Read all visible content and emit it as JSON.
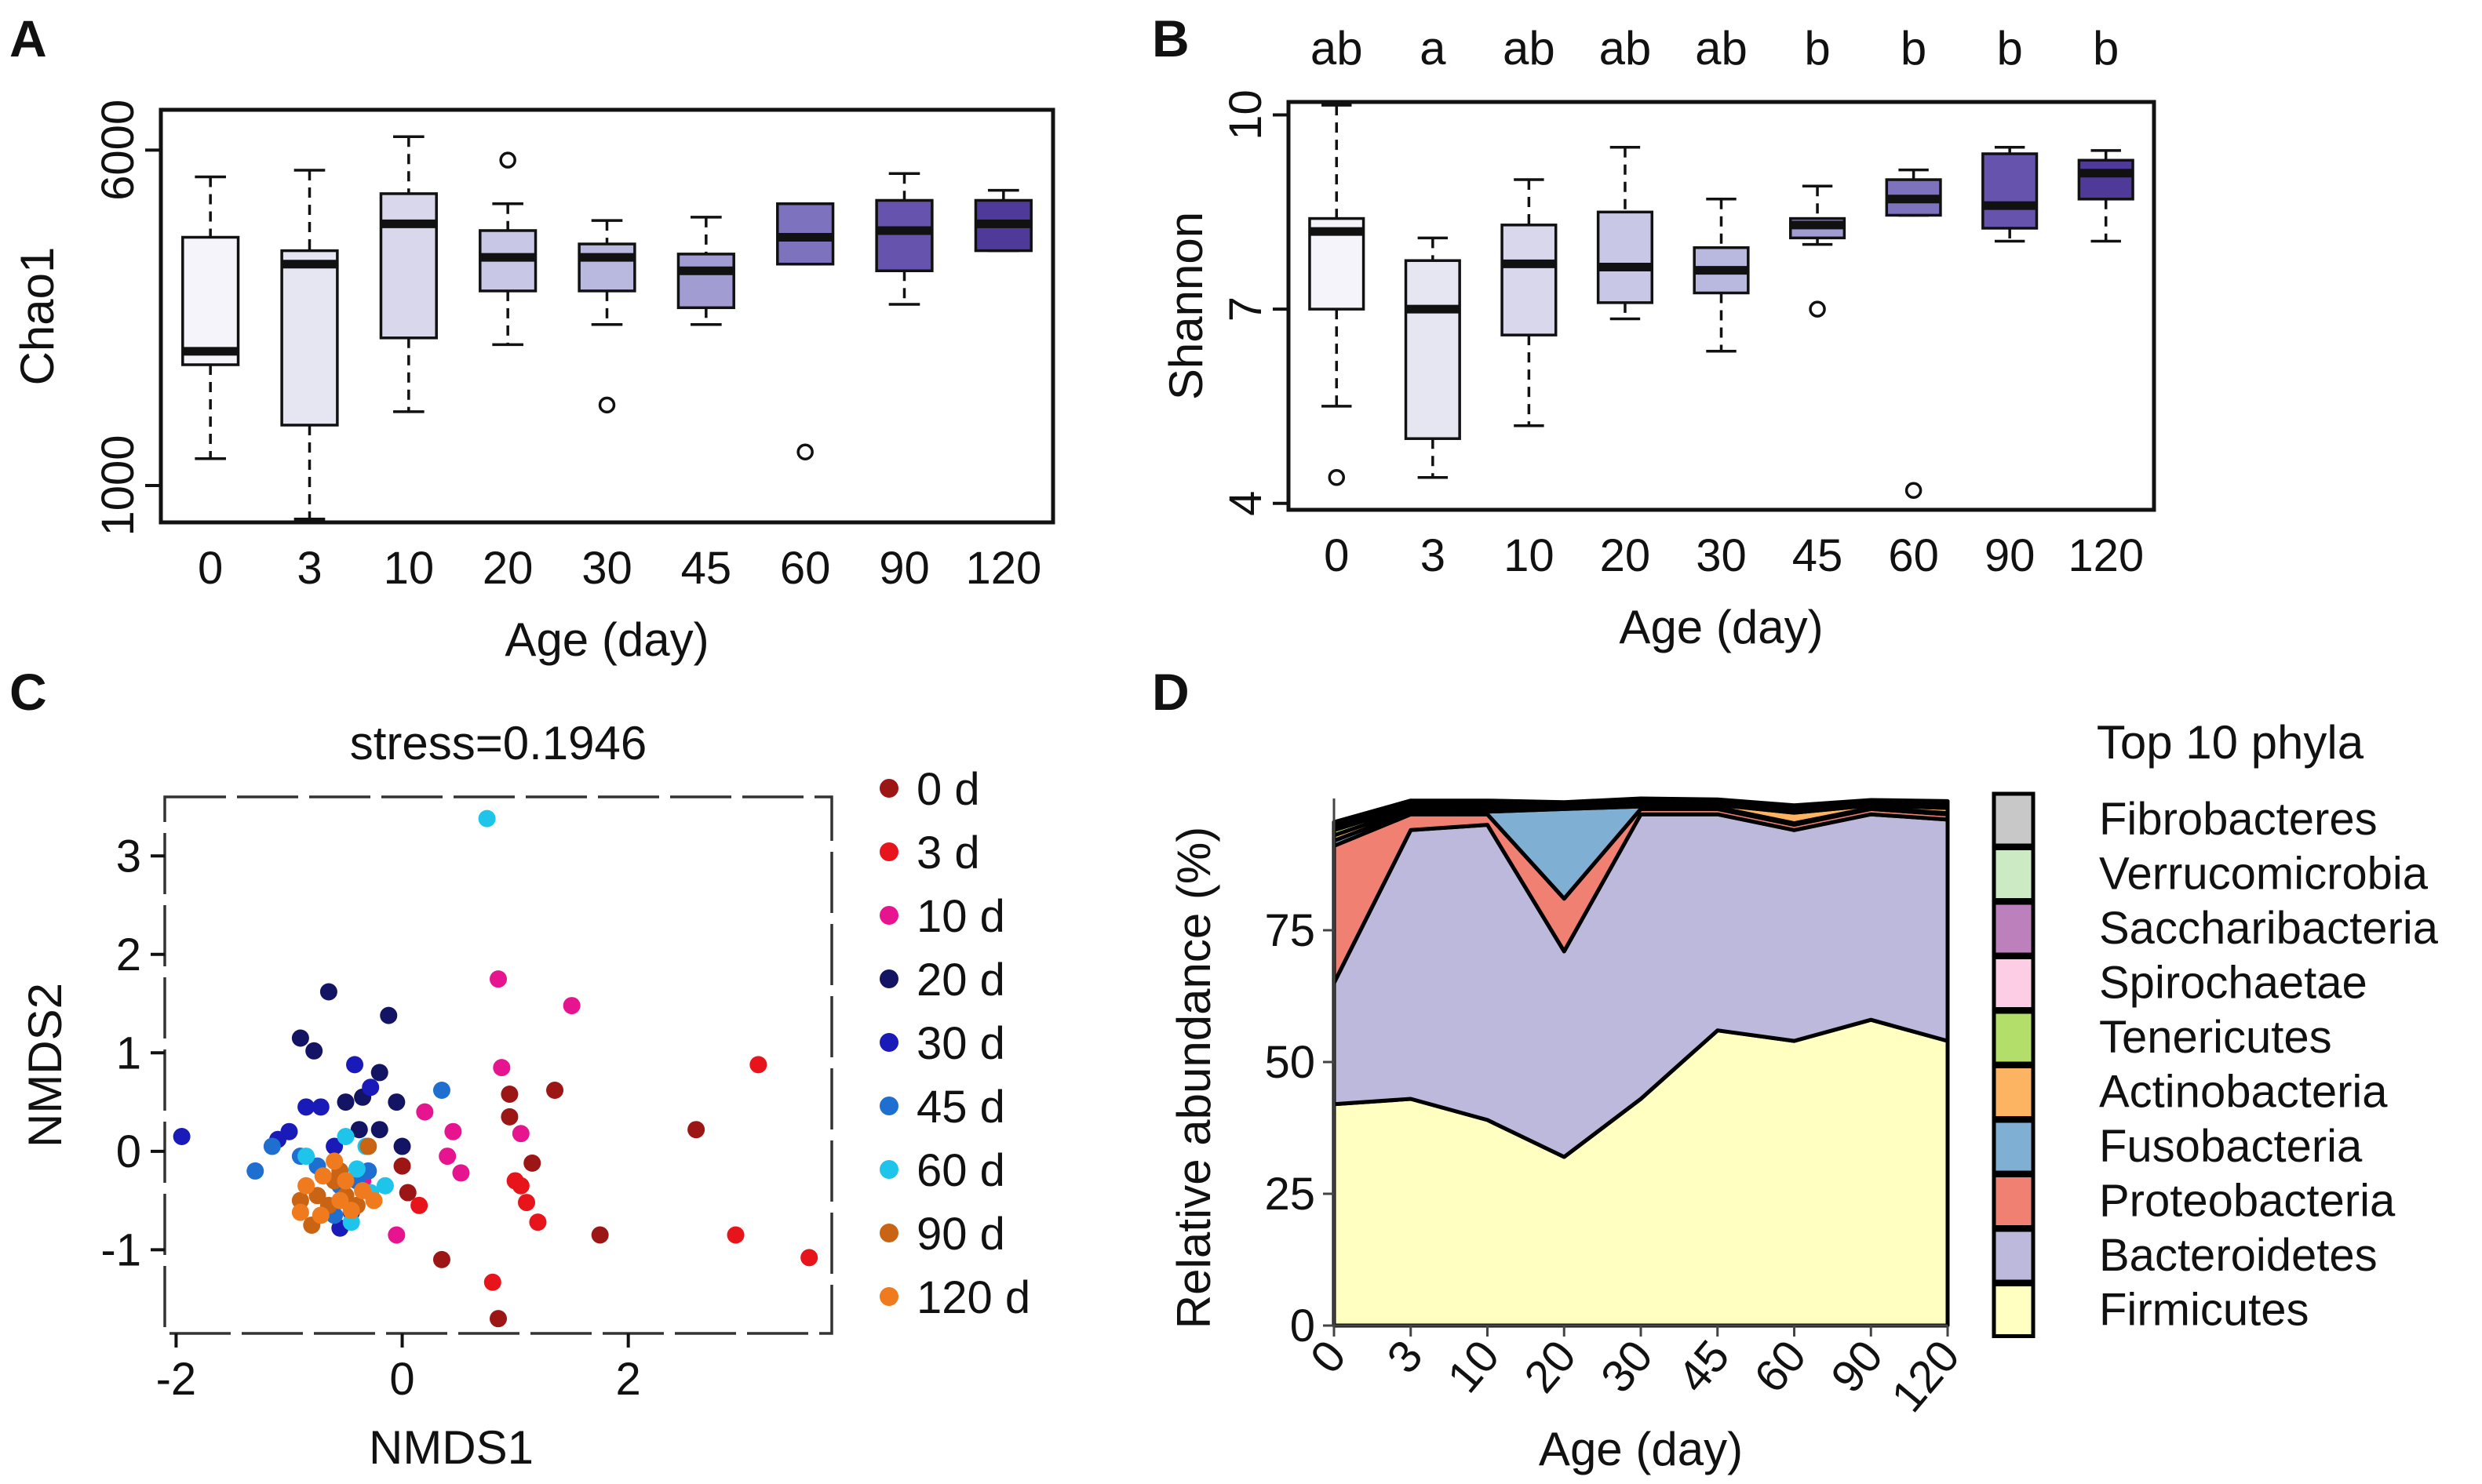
{
  "panels": {
    "A": {
      "label": "A"
    },
    "B": {
      "label": "B"
    },
    "C": {
      "label": "C"
    },
    "D": {
      "label": "D"
    }
  },
  "chart_data": [
    {
      "id": "A",
      "type": "box",
      "xlabel": "Age  (day)",
      "ylabel": "Chao1",
      "categories": [
        "0",
        "3",
        "10",
        "20",
        "30",
        "45",
        "60",
        "90",
        "120"
      ],
      "ylim": [
        450,
        6600
      ],
      "yticks": [
        1000,
        6000
      ],
      "ytick_labels": [
        "1000",
        "6000"
      ],
      "fills": [
        "#f6f4fb",
        "#e6e5f2",
        "#d8d7ec",
        "#c8c8e6",
        "#b9b8de",
        "#a19dd2",
        "#7d72bd",
        "#6553ad",
        "#503a99"
      ],
      "boxes": [
        {
          "min": 1400,
          "q1": 2800,
          "median": 3000,
          "q3": 4700,
          "max": 5600,
          "outliers": []
        },
        {
          "min": 500,
          "q1": 1900,
          "median": 4300,
          "q3": 4500,
          "max": 5700,
          "outliers": []
        },
        {
          "min": 2100,
          "q1": 3200,
          "median": 4900,
          "q3": 5350,
          "max": 6200,
          "outliers": []
        },
        {
          "min": 3100,
          "q1": 3900,
          "median": 4400,
          "q3": 4800,
          "max": 5200,
          "outliers": [
            5850
          ]
        },
        {
          "min": 3400,
          "q1": 3900,
          "median": 4400,
          "q3": 4600,
          "max": 4950,
          "outliers": [
            2200
          ]
        },
        {
          "min": 3400,
          "q1": 3650,
          "median": 4200,
          "q3": 4450,
          "max": 5000,
          "outliers": []
        },
        {
          "min": 4300,
          "q1": 4300,
          "median": 4700,
          "q3": 5200,
          "max": 5200,
          "outliers": [
            1500
          ]
        },
        {
          "min": 3700,
          "q1": 4200,
          "median": 4800,
          "q3": 5250,
          "max": 5650,
          "outliers": []
        },
        {
          "min": 4500,
          "q1": 4500,
          "median": 4900,
          "q3": 5250,
          "max": 5400,
          "outliers": []
        }
      ]
    },
    {
      "id": "B",
      "type": "box",
      "xlabel": "Age  (day)",
      "ylabel": "Shannon",
      "categories": [
        "0",
        "3",
        "10",
        "20",
        "30",
        "45",
        "60",
        "90",
        "120"
      ],
      "ylim": [
        3.9,
        10.2
      ],
      "yticks": [
        4,
        7,
        10
      ],
      "ytick_labels": [
        "4",
        "7",
        "10"
      ],
      "significance": [
        "ab",
        "a",
        "ab",
        "ab",
        "ab",
        "b",
        "b",
        "b",
        "b"
      ],
      "fills": [
        "#f6f4fb",
        "#e6e5f2",
        "#d8d7ec",
        "#c8c8e6",
        "#b9b8de",
        "#a19dd2",
        "#7d72bd",
        "#6553ad",
        "#503a99"
      ],
      "boxes": [
        {
          "min": 5.5,
          "q1": 7.0,
          "median": 8.2,
          "q3": 8.4,
          "max": 10.15,
          "outliers": [
            4.4
          ]
        },
        {
          "min": 4.4,
          "q1": 5.0,
          "median": 7.0,
          "q3": 7.75,
          "max": 8.1,
          "outliers": []
        },
        {
          "min": 5.2,
          "q1": 6.6,
          "median": 7.7,
          "q3": 8.3,
          "max": 9.0,
          "outliers": []
        },
        {
          "min": 6.85,
          "q1": 7.1,
          "median": 7.65,
          "q3": 8.5,
          "max": 9.5,
          "outliers": []
        },
        {
          "min": 6.35,
          "q1": 7.25,
          "median": 7.6,
          "q3": 7.95,
          "max": 8.7,
          "outliers": []
        },
        {
          "min": 8.0,
          "q1": 8.1,
          "median": 8.3,
          "q3": 8.4,
          "max": 8.9,
          "outliers": [
            7.0
          ]
        },
        {
          "min": 8.45,
          "q1": 8.45,
          "median": 8.7,
          "q3": 9.0,
          "max": 9.15,
          "outliers": [
            4.2
          ]
        },
        {
          "min": 8.05,
          "q1": 8.25,
          "median": 8.6,
          "q3": 9.4,
          "max": 9.5,
          "outliers": []
        },
        {
          "min": 8.05,
          "q1": 8.7,
          "median": 9.1,
          "q3": 9.3,
          "max": 9.45,
          "outliers": []
        }
      ]
    },
    {
      "id": "C",
      "type": "scatter",
      "title": "stress=0.1946",
      "xlabel": "NMDS1",
      "ylabel": "NMDS2",
      "xlim": [
        -2.1,
        3.8
      ],
      "ylim": [
        -1.85,
        3.6
      ],
      "xticks": [
        -2,
        0,
        2
      ],
      "xtick_labels": [
        "-2",
        "0",
        "2"
      ],
      "yticks": [
        -1,
        0,
        1,
        2,
        3
      ],
      "ytick_labels": [
        "-1",
        "0",
        "1",
        "2",
        "3"
      ],
      "series": [
        {
          "name": "0 d",
          "color": "#9c1616",
          "points": [
            [
              2.6,
              0.22
            ],
            [
              1.35,
              0.62
            ],
            [
              0.95,
              0.58
            ],
            [
              1.75,
              -0.85
            ],
            [
              0.35,
              -1.1
            ],
            [
              0.85,
              -1.7
            ],
            [
              0.0,
              -0.15
            ],
            [
              0.05,
              -0.42
            ],
            [
              0.95,
              0.35
            ],
            [
              1.15,
              -0.12
            ]
          ]
        },
        {
          "name": "3 d",
          "color": "#e8141b",
          "points": [
            [
              3.15,
              0.88
            ],
            [
              3.6,
              -1.08
            ],
            [
              2.95,
              -0.85
            ],
            [
              1.05,
              -0.35
            ],
            [
              1.0,
              -0.3
            ],
            [
              1.1,
              -0.52
            ],
            [
              1.2,
              -0.72
            ],
            [
              0.8,
              -1.33
            ],
            [
              0.15,
              -0.55
            ]
          ]
        },
        {
          "name": "10 d",
          "color": "#e6158f",
          "points": [
            [
              0.85,
              1.75
            ],
            [
              1.5,
              1.48
            ],
            [
              0.88,
              0.85
            ],
            [
              1.05,
              0.18
            ],
            [
              0.45,
              0.2
            ],
            [
              0.52,
              -0.22
            ],
            [
              0.4,
              -0.05
            ],
            [
              -0.05,
              -0.85
            ],
            [
              0.2,
              0.4
            ],
            [
              -0.35,
              -0.3
            ]
          ]
        },
        {
          "name": "20 d",
          "color": "#141464",
          "points": [
            [
              -0.65,
              1.62
            ],
            [
              -0.12,
              1.38
            ],
            [
              -0.9,
              1.15
            ],
            [
              -0.78,
              1.02
            ],
            [
              -0.2,
              0.8
            ],
            [
              -0.35,
              0.55
            ],
            [
              -0.05,
              0.5
            ],
            [
              -0.5,
              0.5
            ],
            [
              -0.2,
              0.22
            ],
            [
              -0.38,
              0.22
            ],
            [
              0.0,
              0.05
            ]
          ]
        },
        {
          "name": "30 d",
          "color": "#1a1ab8",
          "points": [
            [
              -1.95,
              0.15
            ],
            [
              -0.42,
              0.88
            ],
            [
              -0.85,
              0.45
            ],
            [
              -0.72,
              0.45
            ],
            [
              -1.0,
              0.2
            ],
            [
              -0.6,
              0.05
            ],
            [
              -1.1,
              0.12
            ],
            [
              -0.28,
              0.65
            ],
            [
              -0.55,
              -0.78
            ],
            [
              -0.45,
              -0.62
            ]
          ]
        },
        {
          "name": "45 d",
          "color": "#1f6fd0",
          "points": [
            [
              0.35,
              0.62
            ],
            [
              -1.3,
              -0.2
            ],
            [
              -1.15,
              0.05
            ],
            [
              -0.9,
              -0.05
            ],
            [
              -0.3,
              -0.2
            ],
            [
              -0.6,
              -0.65
            ],
            [
              -0.55,
              -0.35
            ],
            [
              -0.4,
              -0.3
            ],
            [
              -0.75,
              -0.15
            ]
          ]
        },
        {
          "name": "60 d",
          "color": "#1ec4ea",
          "points": [
            [
              0.75,
              3.38
            ],
            [
              -0.15,
              -0.35
            ],
            [
              -0.5,
              0.15
            ],
            [
              -0.85,
              -0.05
            ],
            [
              -0.45,
              -0.72
            ],
            [
              -0.28,
              -0.42
            ],
            [
              -0.32,
              0.05
            ],
            [
              -0.4,
              -0.18
            ]
          ]
        },
        {
          "name": "90 d",
          "color": "#c86414",
          "points": [
            [
              -0.3,
              0.05
            ],
            [
              -0.6,
              -0.3
            ],
            [
              -0.75,
              -0.45
            ],
            [
              -0.5,
              -0.45
            ],
            [
              -0.4,
              -0.55
            ],
            [
              -0.8,
              -0.75
            ],
            [
              -0.65,
              -0.55
            ],
            [
              -0.55,
              -0.2
            ],
            [
              -0.9,
              -0.5
            ]
          ]
        },
        {
          "name": "120 d",
          "color": "#f07a1e",
          "points": [
            [
              -0.85,
              -0.35
            ],
            [
              -0.7,
              -0.25
            ],
            [
              -0.55,
              -0.5
            ],
            [
              -0.45,
              -0.6
            ],
            [
              -0.35,
              -0.4
            ],
            [
              -0.6,
              -0.1
            ],
            [
              -0.72,
              -0.65
            ],
            [
              -0.9,
              -0.62
            ],
            [
              -0.25,
              -0.5
            ],
            [
              -0.5,
              -0.3
            ]
          ]
        }
      ]
    },
    {
      "id": "D",
      "type": "area",
      "xlabel": "Age (day)",
      "ylabel": "Relative abundance (%)",
      "categories": [
        "0",
        "3",
        "10",
        "20",
        "30",
        "45",
        "60",
        "90",
        "120"
      ],
      "ylim": [
        0,
        100
      ],
      "yticks": [
        0,
        25,
        50,
        75
      ],
      "ytick_labels": [
        "0",
        "25",
        "50",
        "75"
      ],
      "legend_title": "Top 10 phyla",
      "series": [
        {
          "name": "Firmicutes",
          "color": "#ffffc2",
          "values": [
            42,
            43,
            39,
            32,
            43,
            56,
            54,
            58,
            54
          ]
        },
        {
          "name": "Bacteroidetes",
          "color": "#bdb9dc",
          "values": [
            23,
            51,
            56,
            39,
            54,
            41,
            40,
            39,
            42
          ]
        },
        {
          "name": "Proteobacteria",
          "color": "#f08072",
          "values": [
            26,
            3,
            2,
            10,
            1,
            1,
            1,
            1,
            1
          ]
        },
        {
          "name": "Fusobacteria",
          "color": "#7fafd2",
          "values": [
            1,
            0.5,
            0.5,
            17,
            0.5,
            0.3,
            0.3,
            0.2,
            0.2
          ]
        },
        {
          "name": "Actinobacteria",
          "color": "#fdb462",
          "values": [
            1,
            0.5,
            0.5,
            0.3,
            0.5,
            0.5,
            2,
            0.5,
            1
          ]
        },
        {
          "name": "Tenericutes",
          "color": "#b3de69",
          "values": [
            1,
            0.5,
            0.5,
            0.3,
            0.3,
            0.3,
            0.5,
            0.3,
            0.5
          ]
        },
        {
          "name": "Spirochaetae",
          "color": "#fccde5",
          "values": [
            0.5,
            0.3,
            0.3,
            0.2,
            0.2,
            0.2,
            0.3,
            0.2,
            0.3
          ]
        },
        {
          "name": "Saccharibacteria",
          "color": "#bc80bd",
          "values": [
            0.5,
            0.3,
            0.3,
            0.2,
            0.2,
            0.2,
            0.3,
            0.2,
            0.2
          ]
        },
        {
          "name": "Verrucomicrobia",
          "color": "#ccebc5",
          "values": [
            0.3,
            0.3,
            0.3,
            0.2,
            0.2,
            0.2,
            0.2,
            0.2,
            0.2
          ]
        },
        {
          "name": "Fibrobacteres",
          "color": "#c8c8c8",
          "values": [
            0.2,
            0.2,
            0.2,
            0.1,
            0.1,
            0.1,
            0.1,
            0.1,
            0.1
          ]
        }
      ]
    }
  ]
}
